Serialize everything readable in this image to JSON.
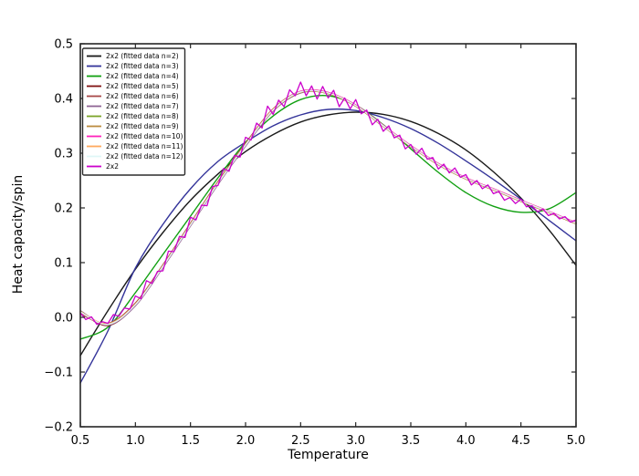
{
  "chart_data": {
    "type": "line",
    "title": "",
    "xlabel": "Temperature",
    "ylabel": "Heat capacity/spin",
    "xlim": [
      0.5,
      5.0
    ],
    "ylim": [
      -0.2,
      0.5
    ],
    "xticks": [
      0.5,
      1.0,
      1.5,
      2.0,
      2.5,
      3.0,
      3.5,
      4.0,
      4.5,
      5.0
    ],
    "yticks": [
      -0.2,
      -0.1,
      0.0,
      0.1,
      0.2,
      0.3,
      0.4,
      0.5
    ],
    "grid": false,
    "legend_position": "upper left",
    "frame_color": "#262626",
    "fit_x": [
      0.5,
      0.75,
      1.0,
      1.25,
      1.5,
      1.75,
      2.0,
      2.25,
      2.5,
      2.75,
      3.0,
      3.25,
      3.5,
      3.75,
      4.0,
      4.25,
      4.5,
      4.75,
      5.0
    ],
    "series": [
      {
        "name": "2x2 (fitted data n=2)",
        "color": "#1a1a1a",
        "smooth": true,
        "y": [
          -0.07,
          0.012,
          0.088,
          0.155,
          0.214,
          0.262,
          0.303,
          0.334,
          0.357,
          0.37,
          0.375,
          0.371,
          0.358,
          0.336,
          0.306,
          0.266,
          0.218,
          0.161,
          0.095
        ]
      },
      {
        "name": "2x2 (fitted data n=3)",
        "color": "#34349a",
        "smooth": true,
        "y": [
          -0.12,
          -0.025,
          0.09,
          0.17,
          0.235,
          0.285,
          0.32,
          0.35,
          0.37,
          0.38,
          0.378,
          0.365,
          0.345,
          0.318,
          0.286,
          0.252,
          0.216,
          0.178,
          0.14
        ]
      },
      {
        "name": "2x2 (fitted data n=4)",
        "color": "#12a012",
        "smooth": true,
        "y": [
          -0.04,
          -0.018,
          0.045,
          0.115,
          0.185,
          0.255,
          0.32,
          0.368,
          0.398,
          0.405,
          0.388,
          0.352,
          0.308,
          0.265,
          0.228,
          0.203,
          0.192,
          0.198,
          0.228
        ]
      },
      {
        "name": "2x2 (fitted data n=5)",
        "color": "#801212",
        "smooth": true,
        "y": [
          0.01,
          -0.015,
          0.022,
          0.092,
          0.168,
          0.244,
          0.314,
          0.378,
          0.411,
          0.409,
          0.386,
          0.349,
          0.312,
          0.279,
          0.253,
          0.233,
          0.212,
          0.192,
          0.171
        ]
      },
      {
        "name": "2x2 (fitted data n=6)",
        "color": "#a84848",
        "smooth": true,
        "y": [
          0.006,
          -0.011,
          0.026,
          0.096,
          0.172,
          0.248,
          0.318,
          0.381,
          0.413,
          0.411,
          0.388,
          0.351,
          0.314,
          0.281,
          0.255,
          0.235,
          0.214,
          0.194,
          0.173
        ]
      },
      {
        "name": "2x2 (fitted data n=7)",
        "color": "#8e6494",
        "smooth": true,
        "y": [
          0.012,
          -0.014,
          0.021,
          0.091,
          0.167,
          0.243,
          0.313,
          0.377,
          0.41,
          0.41,
          0.387,
          0.35,
          0.313,
          0.28,
          0.254,
          0.234,
          0.213,
          0.193,
          0.172
        ]
      },
      {
        "name": "2x2 (fitted data n=8)",
        "color": "#7ba428",
        "smooth": true,
        "y": [
          0.008,
          -0.012,
          0.024,
          0.094,
          0.17,
          0.246,
          0.316,
          0.379,
          0.412,
          0.41,
          0.387,
          0.35,
          0.313,
          0.28,
          0.254,
          0.234,
          0.213,
          0.193,
          0.172
        ]
      },
      {
        "name": "2x2 (fitted data n=9)",
        "color": "#bb8c3f",
        "smooth": true,
        "y": [
          0.011,
          -0.013,
          0.023,
          0.093,
          0.169,
          0.245,
          0.315,
          0.378,
          0.411,
          0.409,
          0.386,
          0.349,
          0.312,
          0.279,
          0.253,
          0.233,
          0.212,
          0.192,
          0.171
        ]
      },
      {
        "name": "2x2 (fitted data n=10)",
        "color": "#ff22bb",
        "smooth": true,
        "y": [
          0.009,
          -0.013,
          0.023,
          0.093,
          0.169,
          0.245,
          0.315,
          0.379,
          0.413,
          0.411,
          0.388,
          0.351,
          0.314,
          0.281,
          0.255,
          0.235,
          0.214,
          0.194,
          0.173
        ]
      },
      {
        "name": "2x2 (fitted data n=11)",
        "color": "#ffa95e",
        "smooth": true,
        "y": [
          0.01,
          -0.012,
          0.024,
          0.094,
          0.17,
          0.246,
          0.316,
          0.38,
          0.412,
          0.41,
          0.387,
          0.35,
          0.313,
          0.28,
          0.254,
          0.234,
          0.213,
          0.193,
          0.172
        ]
      },
      {
        "name": "2x2 (fitted data n=12)",
        "color": "#dff6f6",
        "smooth": true,
        "y": [
          0.01,
          -0.013,
          0.023,
          0.093,
          0.169,
          0.245,
          0.315,
          0.379,
          0.412,
          0.41,
          0.387,
          0.35,
          0.313,
          0.28,
          0.254,
          0.234,
          0.213,
          0.193,
          0.172
        ]
      },
      {
        "name": "2x2",
        "color": "#cc00cc",
        "smooth": false,
        "x": [
          0.5,
          0.55,
          0.6,
          0.65,
          0.7,
          0.75,
          0.8,
          0.85,
          0.9,
          0.95,
          1.0,
          1.05,
          1.1,
          1.15,
          1.2,
          1.25,
          1.3,
          1.35,
          1.4,
          1.45,
          1.5,
          1.55,
          1.6,
          1.65,
          1.7,
          1.75,
          1.8,
          1.85,
          1.9,
          1.95,
          2.0,
          2.05,
          2.1,
          2.15,
          2.2,
          2.25,
          2.3,
          2.35,
          2.4,
          2.45,
          2.5,
          2.55,
          2.6,
          2.65,
          2.7,
          2.75,
          2.8,
          2.85,
          2.9,
          2.95,
          3.0,
          3.05,
          3.1,
          3.15,
          3.2,
          3.25,
          3.3,
          3.35,
          3.4,
          3.45,
          3.5,
          3.55,
          3.6,
          3.65,
          3.7,
          3.75,
          3.8,
          3.85,
          3.9,
          3.95,
          4.0,
          4.05,
          4.1,
          4.15,
          4.2,
          4.25,
          4.3,
          4.35,
          4.4,
          4.45,
          4.5,
          4.55,
          4.6,
          4.65,
          4.7,
          4.75,
          4.8,
          4.85,
          4.9,
          4.95,
          5.0
        ],
        "y": [
          0.008,
          -0.004,
          0.001,
          -0.013,
          -0.008,
          -0.011,
          0.005,
          0.002,
          0.017,
          0.015,
          0.039,
          0.034,
          0.067,
          0.062,
          0.084,
          0.085,
          0.121,
          0.12,
          0.148,
          0.146,
          0.183,
          0.178,
          0.205,
          0.204,
          0.239,
          0.241,
          0.272,
          0.267,
          0.296,
          0.293,
          0.329,
          0.324,
          0.355,
          0.346,
          0.386,
          0.371,
          0.397,
          0.385,
          0.416,
          0.405,
          0.43,
          0.405,
          0.423,
          0.399,
          0.422,
          0.401,
          0.415,
          0.385,
          0.401,
          0.381,
          0.398,
          0.372,
          0.379,
          0.352,
          0.362,
          0.34,
          0.35,
          0.328,
          0.333,
          0.308,
          0.316,
          0.298,
          0.309,
          0.289,
          0.292,
          0.271,
          0.28,
          0.264,
          0.273,
          0.256,
          0.261,
          0.242,
          0.25,
          0.235,
          0.242,
          0.226,
          0.23,
          0.214,
          0.219,
          0.208,
          0.216,
          0.202,
          0.204,
          0.193,
          0.198,
          0.186,
          0.19,
          0.18,
          0.184,
          0.174,
          0.178
        ]
      }
    ]
  }
}
